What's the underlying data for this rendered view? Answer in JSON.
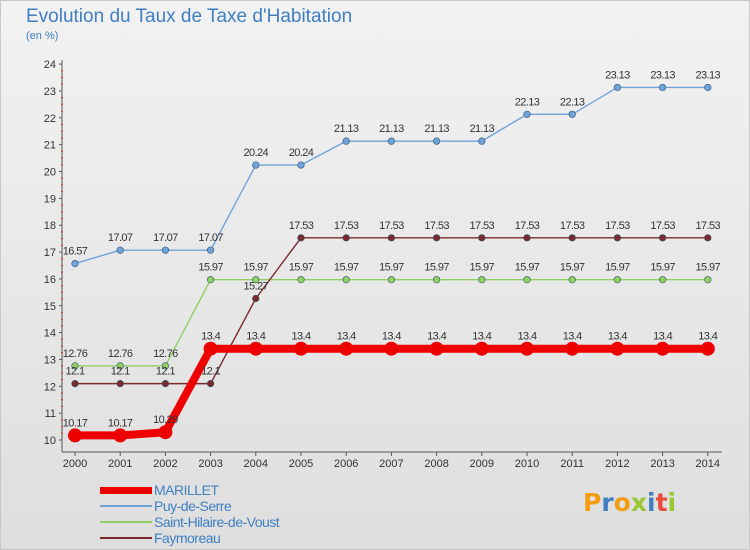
{
  "header": {
    "title": "Evolution du Taux de Taxe d'Habitation",
    "subtitle": "(en %)"
  },
  "brand": {
    "logo_text": "Proxiti",
    "colors": [
      "#f39c12",
      "#3f7fc2",
      "#f39c12",
      "#9dc633",
      "#3f7fc2",
      "#e74c3c",
      "#9dc633"
    ]
  },
  "chart_data": {
    "type": "line",
    "x": [
      2000,
      2001,
      2002,
      2003,
      2004,
      2005,
      2006,
      2007,
      2008,
      2009,
      2010,
      2011,
      2012,
      2013,
      2014
    ],
    "ylim": [
      10,
      24
    ],
    "yticks": [
      10,
      11,
      12,
      13,
      14,
      15,
      16,
      17,
      18,
      19,
      20,
      21,
      22,
      23,
      24
    ],
    "grid": false,
    "series": [
      {
        "name": "MARILLET",
        "color": "#ee0000",
        "values": [
          10.17,
          10.17,
          10.29,
          13.4,
          13.4,
          13.4,
          13.4,
          13.4,
          13.4,
          13.4,
          13.4,
          13.4,
          13.4,
          13.4,
          13.4
        ],
        "labels": [
          "10.17",
          "10.17",
          "10.29",
          "13.4",
          "13.4",
          "13.4",
          "13.4",
          "13.4",
          "13.4",
          "13.4",
          "13.4",
          "13.4",
          "13.4",
          "13.4",
          "13.4"
        ]
      },
      {
        "name": "Puy-de-Serre",
        "color": "#6fa3d8",
        "values": [
          16.57,
          17.07,
          17.07,
          17.07,
          20.24,
          20.24,
          21.13,
          21.13,
          21.13,
          21.13,
          22.13,
          22.13,
          23.13,
          23.13,
          23.13
        ],
        "labels": [
          "16.57",
          "17.07",
          "17.07",
          "17.07",
          "20.24",
          "20.24",
          "21.13",
          "21.13",
          "21.13",
          "21.13",
          "22.13",
          "22.13",
          "23.13",
          "23.13",
          "23.13"
        ]
      },
      {
        "name": "Saint-Hilaire-de-Voust",
        "color": "#90d060",
        "values": [
          12.76,
          12.76,
          12.76,
          15.97,
          15.97,
          15.97,
          15.97,
          15.97,
          15.97,
          15.97,
          15.97,
          15.97,
          15.97,
          15.97,
          15.97
        ],
        "labels": [
          "12.76",
          "12.76",
          "12.76",
          "15.97",
          "15.97",
          "15.97",
          "15.97",
          "15.97",
          "15.97",
          "15.97",
          "15.97",
          "15.97",
          "15.97",
          "15.97",
          "15.97"
        ]
      },
      {
        "name": "Faymoreau",
        "color": "#7a2a2a",
        "values": [
          12.1,
          12.1,
          12.1,
          12.1,
          15.27,
          17.53,
          17.53,
          17.53,
          17.53,
          17.53,
          17.53,
          17.53,
          17.53,
          17.53,
          17.53
        ],
        "labels": [
          "12.1",
          "12.1",
          "12.1",
          "12.1",
          "15.27",
          "17.53",
          "17.53",
          "17.53",
          "17.53",
          "17.53",
          "17.53",
          "17.53",
          "17.53",
          "17.53",
          "17.53"
        ]
      }
    ],
    "legend_position": "bottom-left"
  }
}
